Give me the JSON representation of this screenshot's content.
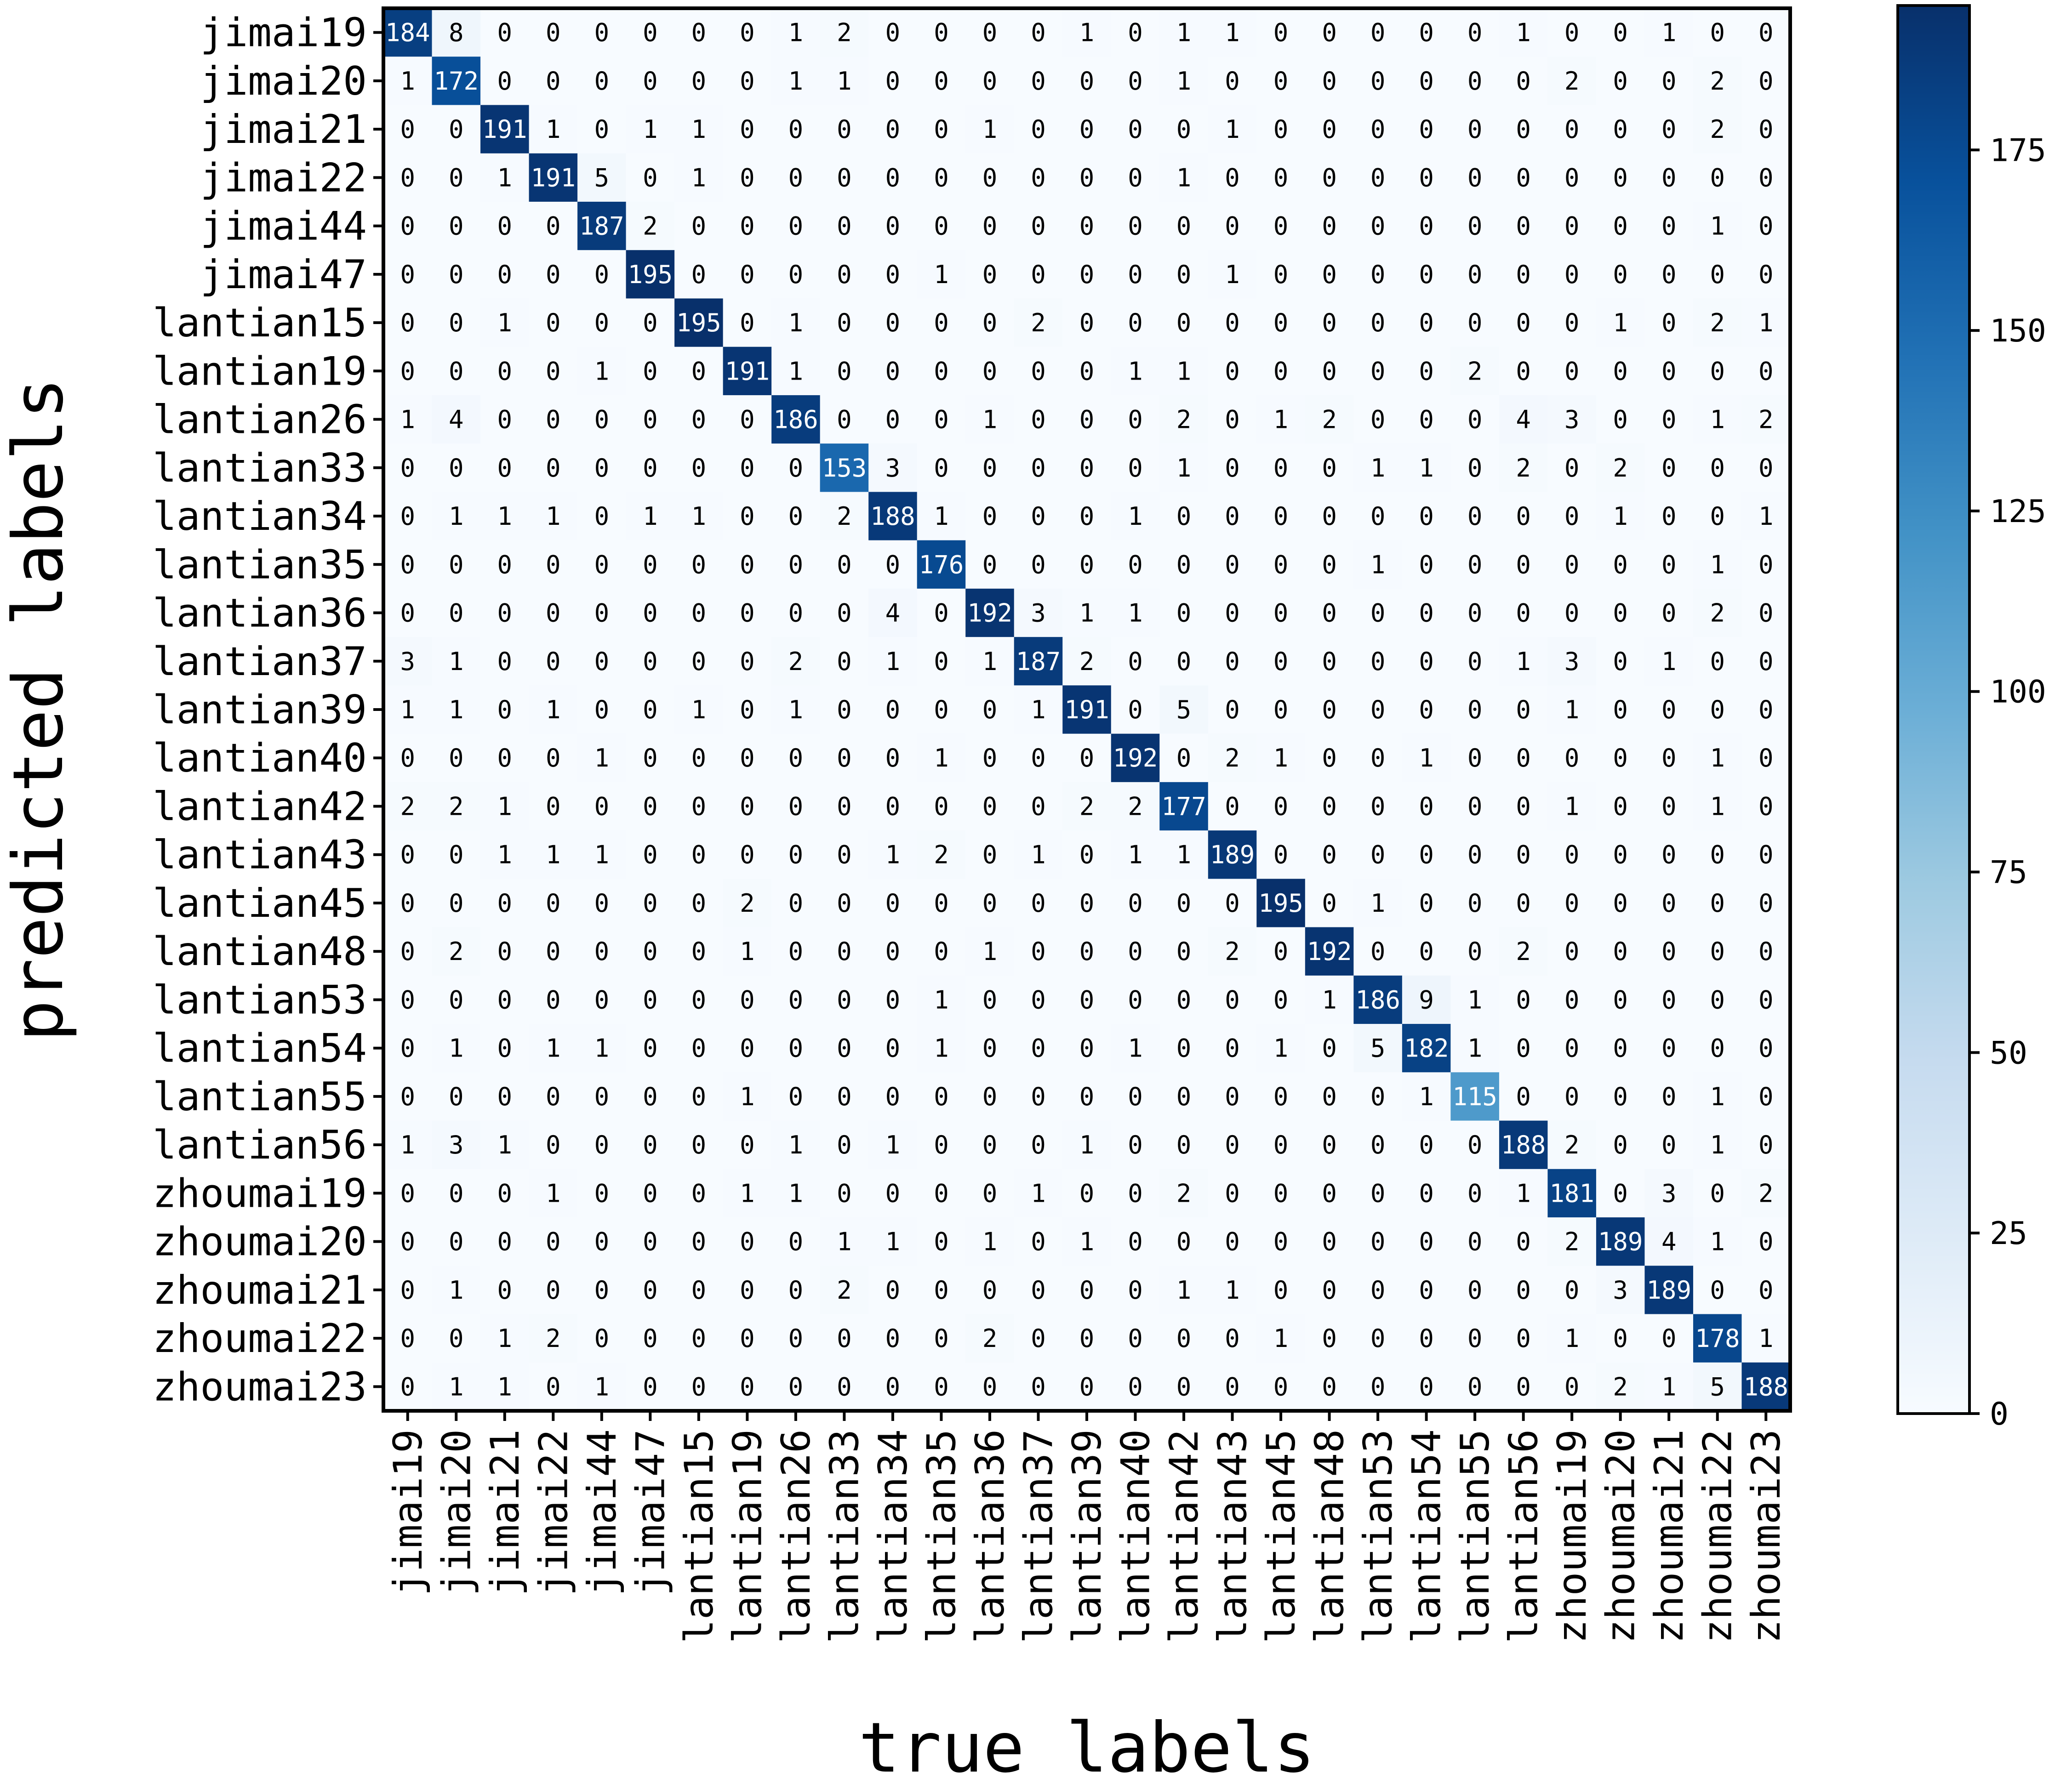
{
  "chart_data": {
    "type": "heatmap",
    "title": "",
    "xlabel": "true labels",
    "ylabel": "predicted labels",
    "x_categories": [
      "jimai19",
      "jimai20",
      "jimai21",
      "jimai22",
      "jimai44",
      "jimai47",
      "lantian15",
      "lantian19",
      "lantian26",
      "lantian33",
      "lantian34",
      "lantian35",
      "lantian36",
      "lantian37",
      "lantian39",
      "lantian40",
      "lantian42",
      "lantian43",
      "lantian45",
      "lantian48",
      "lantian53",
      "lantian54",
      "lantian55",
      "lantian56",
      "zhoumai19",
      "zhoumai20",
      "zhoumai21",
      "zhoumai22",
      "zhoumai23"
    ],
    "y_categories": [
      "jimai19",
      "jimai20",
      "jimai21",
      "jimai22",
      "jimai44",
      "jimai47",
      "lantian15",
      "lantian19",
      "lantian26",
      "lantian33",
      "lantian34",
      "lantian35",
      "lantian36",
      "lantian37",
      "lantian39",
      "lantian40",
      "lantian42",
      "lantian43",
      "lantian45",
      "lantian48",
      "lantian53",
      "lantian54",
      "lantian55",
      "lantian56",
      "zhoumai19",
      "zhoumai20",
      "zhoumai21",
      "zhoumai22",
      "zhoumai23"
    ],
    "matrix": [
      [
        184,
        8,
        0,
        0,
        0,
        0,
        0,
        0,
        1,
        2,
        0,
        0,
        0,
        0,
        1,
        0,
        1,
        1,
        0,
        0,
        0,
        0,
        0,
        1,
        0,
        0,
        1,
        0,
        0
      ],
      [
        1,
        172,
        0,
        0,
        0,
        0,
        0,
        0,
        1,
        1,
        0,
        0,
        0,
        0,
        0,
        0,
        1,
        0,
        0,
        0,
        0,
        0,
        0,
        0,
        2,
        0,
        0,
        2,
        0
      ],
      [
        0,
        0,
        191,
        1,
        0,
        1,
        1,
        0,
        0,
        0,
        0,
        0,
        1,
        0,
        0,
        0,
        0,
        1,
        0,
        0,
        0,
        0,
        0,
        0,
        0,
        0,
        0,
        2,
        0
      ],
      [
        0,
        0,
        1,
        191,
        5,
        0,
        1,
        0,
        0,
        0,
        0,
        0,
        0,
        0,
        0,
        0,
        1,
        0,
        0,
        0,
        0,
        0,
        0,
        0,
        0,
        0,
        0,
        0,
        0
      ],
      [
        0,
        0,
        0,
        0,
        187,
        2,
        0,
        0,
        0,
        0,
        0,
        0,
        0,
        0,
        0,
        0,
        0,
        0,
        0,
        0,
        0,
        0,
        0,
        0,
        0,
        0,
        0,
        1,
        0
      ],
      [
        0,
        0,
        0,
        0,
        0,
        195,
        0,
        0,
        0,
        0,
        0,
        1,
        0,
        0,
        0,
        0,
        0,
        1,
        0,
        0,
        0,
        0,
        0,
        0,
        0,
        0,
        0,
        0,
        0
      ],
      [
        0,
        0,
        1,
        0,
        0,
        0,
        195,
        0,
        1,
        0,
        0,
        0,
        0,
        2,
        0,
        0,
        0,
        0,
        0,
        0,
        0,
        0,
        0,
        0,
        0,
        1,
        0,
        2,
        1
      ],
      [
        0,
        0,
        0,
        0,
        1,
        0,
        0,
        191,
        1,
        0,
        0,
        0,
        0,
        0,
        0,
        1,
        1,
        0,
        0,
        0,
        0,
        0,
        2,
        0,
        0,
        0,
        0,
        0,
        0
      ],
      [
        1,
        4,
        0,
        0,
        0,
        0,
        0,
        0,
        186,
        0,
        0,
        0,
        1,
        0,
        0,
        0,
        2,
        0,
        1,
        2,
        0,
        0,
        0,
        4,
        3,
        0,
        0,
        1,
        2
      ],
      [
        0,
        0,
        0,
        0,
        0,
        0,
        0,
        0,
        0,
        153,
        3,
        0,
        0,
        0,
        0,
        0,
        1,
        0,
        0,
        0,
        1,
        1,
        0,
        2,
        0,
        2,
        0,
        0,
        0
      ],
      [
        0,
        1,
        1,
        1,
        0,
        1,
        1,
        0,
        0,
        2,
        188,
        1,
        0,
        0,
        0,
        1,
        0,
        0,
        0,
        0,
        0,
        0,
        0,
        0,
        0,
        1,
        0,
        0,
        1
      ],
      [
        0,
        0,
        0,
        0,
        0,
        0,
        0,
        0,
        0,
        0,
        0,
        176,
        0,
        0,
        0,
        0,
        0,
        0,
        0,
        0,
        1,
        0,
        0,
        0,
        0,
        0,
        0,
        1,
        0
      ],
      [
        0,
        0,
        0,
        0,
        0,
        0,
        0,
        0,
        0,
        0,
        4,
        0,
        192,
        3,
        1,
        1,
        0,
        0,
        0,
        0,
        0,
        0,
        0,
        0,
        0,
        0,
        0,
        2,
        0
      ],
      [
        3,
        1,
        0,
        0,
        0,
        0,
        0,
        0,
        2,
        0,
        1,
        0,
        1,
        187,
        2,
        0,
        0,
        0,
        0,
        0,
        0,
        0,
        0,
        1,
        3,
        0,
        1,
        0,
        0
      ],
      [
        1,
        1,
        0,
        1,
        0,
        0,
        1,
        0,
        1,
        0,
        0,
        0,
        0,
        1,
        191,
        0,
        5,
        0,
        0,
        0,
        0,
        0,
        0,
        0,
        1,
        0,
        0,
        0,
        0
      ],
      [
        0,
        0,
        0,
        0,
        1,
        0,
        0,
        0,
        0,
        0,
        0,
        1,
        0,
        0,
        0,
        192,
        0,
        2,
        1,
        0,
        0,
        1,
        0,
        0,
        0,
        0,
        0,
        1,
        0
      ],
      [
        2,
        2,
        1,
        0,
        0,
        0,
        0,
        0,
        0,
        0,
        0,
        0,
        0,
        0,
        2,
        2,
        177,
        0,
        0,
        0,
        0,
        0,
        0,
        0,
        1,
        0,
        0,
        1,
        0
      ],
      [
        0,
        0,
        1,
        1,
        1,
        0,
        0,
        0,
        0,
        0,
        1,
        2,
        0,
        1,
        0,
        1,
        1,
        189,
        0,
        0,
        0,
        0,
        0,
        0,
        0,
        0,
        0,
        0,
        0
      ],
      [
        0,
        0,
        0,
        0,
        0,
        0,
        0,
        2,
        0,
        0,
        0,
        0,
        0,
        0,
        0,
        0,
        0,
        0,
        195,
        0,
        1,
        0,
        0,
        0,
        0,
        0,
        0,
        0,
        0
      ],
      [
        0,
        2,
        0,
        0,
        0,
        0,
        0,
        1,
        0,
        0,
        0,
        0,
        1,
        0,
        0,
        0,
        0,
        2,
        0,
        192,
        0,
        0,
        0,
        2,
        0,
        0,
        0,
        0,
        0
      ],
      [
        0,
        0,
        0,
        0,
        0,
        0,
        0,
        0,
        0,
        0,
        0,
        1,
        0,
        0,
        0,
        0,
        0,
        0,
        0,
        1,
        186,
        9,
        1,
        0,
        0,
        0,
        0,
        0,
        0
      ],
      [
        0,
        1,
        0,
        1,
        1,
        0,
        0,
        0,
        0,
        0,
        0,
        1,
        0,
        0,
        0,
        1,
        0,
        0,
        1,
        0,
        5,
        182,
        1,
        0,
        0,
        0,
        0,
        0,
        0
      ],
      [
        0,
        0,
        0,
        0,
        0,
        0,
        0,
        1,
        0,
        0,
        0,
        0,
        0,
        0,
        0,
        0,
        0,
        0,
        0,
        0,
        0,
        1,
        115,
        0,
        0,
        0,
        0,
        1,
        0
      ],
      [
        1,
        3,
        1,
        0,
        0,
        0,
        0,
        0,
        1,
        0,
        1,
        0,
        0,
        0,
        1,
        0,
        0,
        0,
        0,
        0,
        0,
        0,
        0,
        188,
        2,
        0,
        0,
        1,
        0
      ],
      [
        0,
        0,
        0,
        1,
        0,
        0,
        0,
        1,
        1,
        0,
        0,
        0,
        0,
        1,
        0,
        0,
        2,
        0,
        0,
        0,
        0,
        0,
        0,
        1,
        181,
        0,
        3,
        0,
        2
      ],
      [
        0,
        0,
        0,
        0,
        0,
        0,
        0,
        0,
        0,
        1,
        1,
        0,
        1,
        0,
        1,
        0,
        0,
        0,
        0,
        0,
        0,
        0,
        0,
        0,
        2,
        189,
        4,
        1,
        0
      ],
      [
        0,
        1,
        0,
        0,
        0,
        0,
        0,
        0,
        0,
        2,
        0,
        0,
        0,
        0,
        0,
        0,
        1,
        1,
        0,
        0,
        0,
        0,
        0,
        0,
        0,
        3,
        189,
        0,
        0
      ],
      [
        0,
        0,
        1,
        2,
        0,
        0,
        0,
        0,
        0,
        0,
        0,
        0,
        2,
        0,
        0,
        0,
        0,
        0,
        1,
        0,
        0,
        0,
        0,
        0,
        1,
        0,
        0,
        178,
        1
      ],
      [
        0,
        1,
        1,
        0,
        1,
        0,
        0,
        0,
        0,
        0,
        0,
        0,
        0,
        0,
        0,
        0,
        0,
        0,
        0,
        0,
        0,
        0,
        0,
        0,
        0,
        2,
        1,
        5,
        188
      ]
    ],
    "colorbar": {
      "colormap": "Blues",
      "vmin": 0,
      "vmax": 195,
      "ticks": [
        0,
        25,
        50,
        75,
        100,
        125,
        150,
        175
      ],
      "tick_labels": [
        "0",
        "25",
        "50",
        "75",
        "100",
        "125",
        "150",
        "175"
      ]
    },
    "grid": false,
    "colors": {
      "text_dark": "#000000",
      "text_light": "#ffffff",
      "frame": "#000000"
    }
  }
}
